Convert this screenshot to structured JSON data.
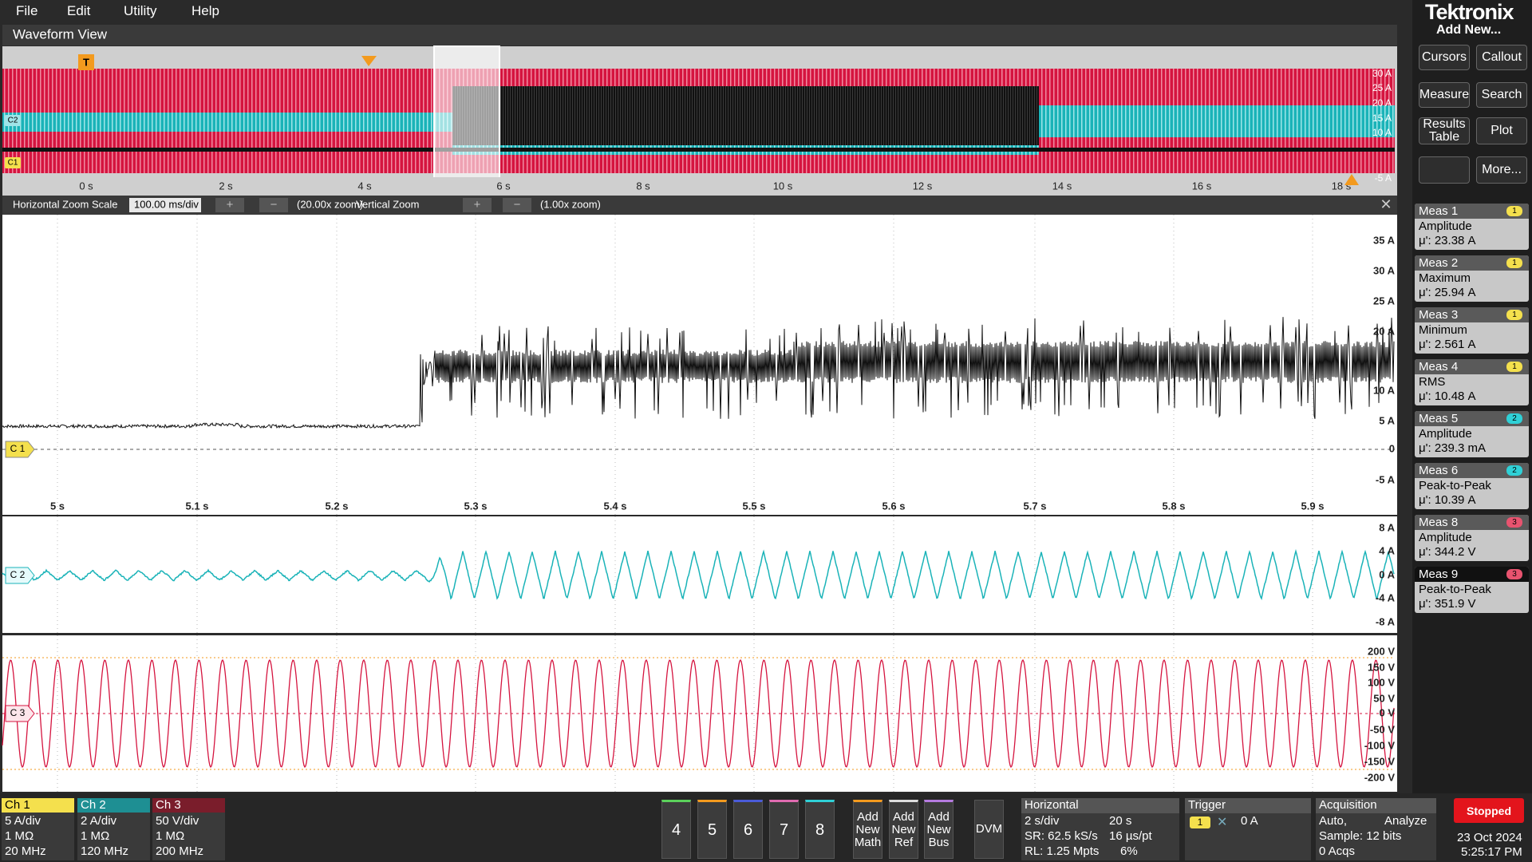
{
  "menu": [
    "File",
    "Edit",
    "Utility",
    "Help"
  ],
  "panel": {
    "brand": "Tektronix",
    "add_new": "Add New...",
    "buttons": [
      "Cursors",
      "Callout",
      "Measure",
      "Search",
      "Results Table",
      "Plot",
      "More..."
    ]
  },
  "measurements": [
    {
      "name": "Meas 1",
      "source": "1",
      "type": "Amplitude",
      "value": "μ': 23.38 A"
    },
    {
      "name": "Meas 2",
      "source": "1",
      "type": "Maximum",
      "value": "μ': 25.94 A"
    },
    {
      "name": "Meas 3",
      "source": "1",
      "type": "Minimum",
      "value": "μ': 2.561 A"
    },
    {
      "name": "Meas 4",
      "source": "1",
      "type": "RMS",
      "value": "μ': 10.48 A"
    },
    {
      "name": "Meas 5",
      "source": "2",
      "type": "Amplitude",
      "value": "μ': 239.3 mA"
    },
    {
      "name": "Meas 6",
      "source": "2",
      "type": "Peak-to-Peak",
      "value": "μ': 10.39 A"
    },
    {
      "name": "Meas 8",
      "source": "3",
      "type": "Amplitude",
      "value": "μ': 344.2 V"
    },
    {
      "name": "Meas 9",
      "source": "3",
      "type": "Peak-to-Peak",
      "value": "μ': 351.9 V"
    }
  ],
  "waveform_view": {
    "title": "Waveform View",
    "trigger_marker": "T",
    "overview": {
      "time_labels": [
        "0 s",
        "2 s",
        "4 s",
        "6 s",
        "8 s",
        "10 s",
        "12 s",
        "14 s",
        "16 s",
        "18 s"
      ],
      "y_labels": [
        "30 A",
        "25 A",
        "20 A",
        "15 A",
        "10 A",
        "-5 A"
      ],
      "channel_markers": [
        "C2",
        "C1"
      ]
    },
    "zoom_bar": {
      "h_label": "Horizontal Zoom Scale",
      "h_value": "100.00 ms/div",
      "h_zoom": "(20.00x zoom)",
      "v_label": "Vertical Zoom",
      "v_zoom": "(1.00x zoom)"
    },
    "ch1": {
      "marker": "C 1",
      "y_labels": [
        "35 A",
        "30 A",
        "25 A",
        "20 A",
        "10 A",
        "5 A",
        "0",
        "-5 A"
      ],
      "time_labels": [
        "5 s",
        "5.1 s",
        "5.2 s",
        "5.3 s",
        "5.4 s",
        "5.5 s",
        "5.6 s",
        "5.7 s",
        "5.8 s",
        "5.9 s"
      ]
    },
    "ch2": {
      "marker": "C 2",
      "y_labels": [
        "8 A",
        "4 A",
        "0 A",
        "-4 A",
        "-8 A"
      ]
    },
    "ch3": {
      "marker": "C 3",
      "y_labels": [
        "200 V",
        "150 V",
        "100 V",
        "50 V",
        "0 V",
        "-50 V",
        "-100 V",
        "-150 V",
        "-200 V"
      ]
    }
  },
  "bottom_bar": {
    "channels": [
      {
        "name": "Ch 1",
        "lines": [
          "5 A/div",
          "1 MΩ",
          "20 MHz"
        ]
      },
      {
        "name": "Ch 2",
        "lines": [
          "2 A/div",
          "1 MΩ",
          "120 MHz"
        ]
      },
      {
        "name": "Ch 3",
        "lines": [
          "50 V/div",
          "1 MΩ",
          "200 MHz"
        ]
      }
    ],
    "slots": [
      "4",
      "5",
      "6",
      "7",
      "8"
    ],
    "add_buttons": [
      "Add New Math",
      "Add New Ref",
      "Add New Bus",
      "DVM"
    ],
    "horizontal": {
      "title": "Horizontal",
      "lines": [
        "2 s/div",
        "20 s",
        "SR: 62.5 kS/s",
        "16 µs/pt",
        "RL: 1.25 Mpts",
        "6%"
      ]
    },
    "trigger": {
      "title": "Trigger",
      "source": "1",
      "level": "0 A"
    },
    "acquisition": {
      "title": "Acquisition",
      "lines": [
        "Auto,",
        "Analyze",
        "Sample: 12 bits",
        "0 Acqs"
      ]
    },
    "status": {
      "state": "Stopped",
      "date": "23 Oct 2024",
      "time": "5:25:17 PM"
    }
  }
}
